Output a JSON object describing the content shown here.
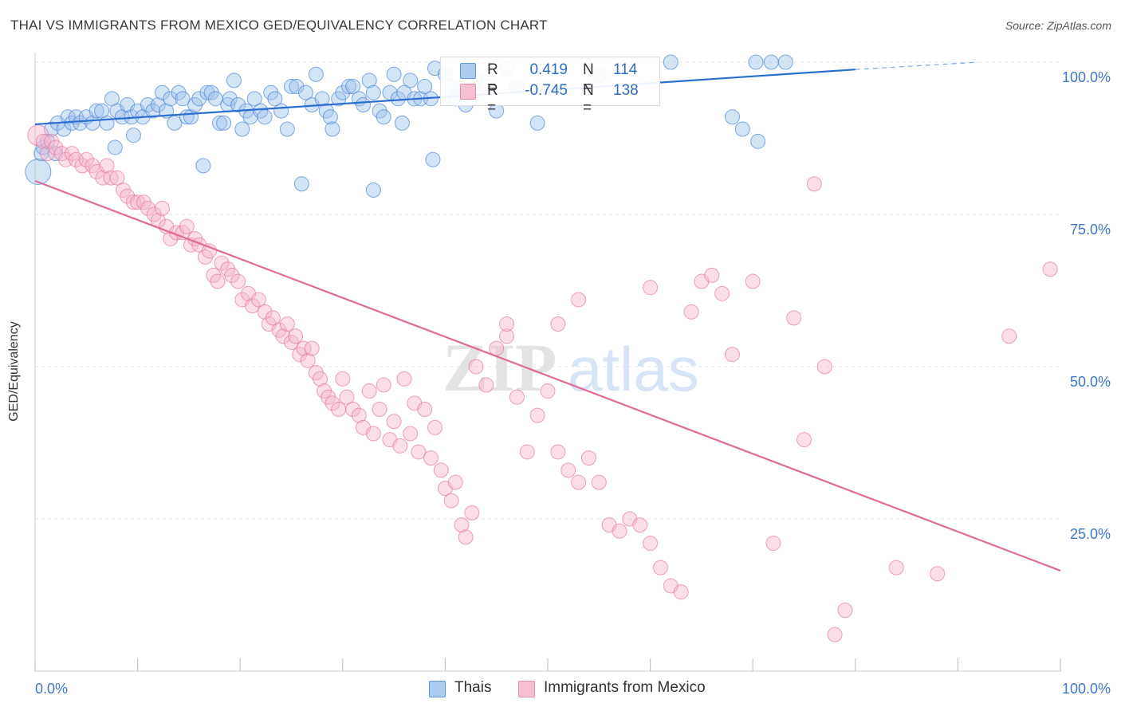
{
  "header": {
    "title": "THAI VS IMMIGRANTS FROM MEXICO GED/EQUIVALENCY CORRELATION CHART",
    "source": "Source: ZipAtlas.com"
  },
  "watermark": {
    "part1": "ZIP",
    "part2": "atlas"
  },
  "legend": {
    "r_label": "R =",
    "n_label": "N =",
    "series": [
      {
        "name": "Thais",
        "r": "0.419",
        "n": "114",
        "color": "#9ec3ee",
        "stroke": "#4a86d4",
        "line": "#2b6fce",
        "text": "#2d6bc4"
      },
      {
        "name": "Immigrants from Mexico",
        "r": "-0.745",
        "n": "138",
        "color": "#f6b6cb",
        "stroke": "#e5799e",
        "line": "#e06b97",
        "text": "#2d6bc4"
      }
    ]
  },
  "chart_data": {
    "type": "scatter",
    "title": "THAI VS IMMIGRANTS FROM MEXICO GED/EQUIVALENCY CORRELATION CHART",
    "xlabel": "",
    "ylabel": "GED/Equivalency",
    "xlim": [
      0,
      100
    ],
    "ylim": [
      0,
      100
    ],
    "x_tick_labels": [
      "0.0%",
      "100.0%"
    ],
    "y_tick_labels": [
      "100.0%",
      "75.0%",
      "50.0%",
      "25.0%"
    ],
    "y_ticks": [
      100,
      75,
      50,
      25
    ],
    "grid": "horizontal dashed",
    "legend_position": "top-center",
    "series": [
      {
        "name": "Thais",
        "trend": {
          "x": [
            0,
            80
          ],
          "y": [
            89.8,
            98.8
          ],
          "dashed_to_x": 92,
          "dashed_to_y": 100
        },
        "points": [
          [
            0.3,
            82
          ],
          [
            0.6,
            85
          ],
          [
            0.8,
            86
          ],
          [
            1.2,
            87
          ],
          [
            1.6,
            89
          ],
          [
            2,
            85
          ],
          [
            2.2,
            90
          ],
          [
            2.8,
            89
          ],
          [
            3.2,
            91
          ],
          [
            3.6,
            90
          ],
          [
            4,
            91
          ],
          [
            4.4,
            90
          ],
          [
            5,
            91
          ],
          [
            5.6,
            90
          ],
          [
            6,
            92
          ],
          [
            6.5,
            92
          ],
          [
            7,
            90
          ],
          [
            7.5,
            94
          ],
          [
            7.8,
            86
          ],
          [
            8,
            92
          ],
          [
            8.5,
            91
          ],
          [
            9,
            93
          ],
          [
            9.4,
            91
          ],
          [
            9.6,
            88
          ],
          [
            10,
            92
          ],
          [
            10.5,
            91
          ],
          [
            11,
            93
          ],
          [
            11.5,
            92
          ],
          [
            12,
            93
          ],
          [
            12.4,
            95
          ],
          [
            12.8,
            92
          ],
          [
            13.2,
            94
          ],
          [
            13.6,
            90
          ],
          [
            14,
            95
          ],
          [
            14.4,
            94
          ],
          [
            14.8,
            91
          ],
          [
            15.2,
            91
          ],
          [
            15.6,
            93
          ],
          [
            16,
            94
          ],
          [
            16.4,
            83
          ],
          [
            16.8,
            95
          ],
          [
            17.2,
            95
          ],
          [
            17.6,
            94
          ],
          [
            18,
            90
          ],
          [
            18.4,
            90
          ],
          [
            18.8,
            93
          ],
          [
            19,
            94
          ],
          [
            19.4,
            97
          ],
          [
            19.8,
            93
          ],
          [
            20.2,
            89
          ],
          [
            20.6,
            92
          ],
          [
            21,
            91
          ],
          [
            21.4,
            94
          ],
          [
            22,
            92
          ],
          [
            22.4,
            91
          ],
          [
            23,
            95
          ],
          [
            23.4,
            94
          ],
          [
            24,
            92
          ],
          [
            24.6,
            89
          ],
          [
            25,
            96
          ],
          [
            25.5,
            96
          ],
          [
            26,
            80
          ],
          [
            26.4,
            95
          ],
          [
            27,
            93
          ],
          [
            27.4,
            98
          ],
          [
            28,
            94
          ],
          [
            28.4,
            92
          ],
          [
            28.8,
            91
          ],
          [
            29,
            89
          ],
          [
            29.6,
            94
          ],
          [
            30,
            95
          ],
          [
            30.6,
            96
          ],
          [
            31,
            96
          ],
          [
            31.6,
            94
          ],
          [
            32,
            93
          ],
          [
            32.6,
            97
          ],
          [
            33,
            95
          ],
          [
            33.6,
            92
          ],
          [
            34,
            91
          ],
          [
            34.6,
            95
          ],
          [
            35,
            98
          ],
          [
            35.4,
            94
          ],
          [
            35.8,
            90
          ],
          [
            36,
            95
          ],
          [
            36.6,
            97
          ],
          [
            37,
            94
          ],
          [
            37.6,
            94
          ],
          [
            38,
            96
          ],
          [
            38.6,
            94
          ],
          [
            38.8,
            84
          ],
          [
            39,
            99
          ],
          [
            40,
            98
          ],
          [
            40.6,
            96
          ],
          [
            41,
            94
          ],
          [
            41.4,
            95
          ],
          [
            42,
            93
          ],
          [
            43,
            97
          ],
          [
            44,
            96
          ],
          [
            45,
            92
          ],
          [
            46,
            99
          ],
          [
            47,
            96
          ],
          [
            49,
            90
          ],
          [
            50,
            96
          ],
          [
            55,
            98
          ],
          [
            62,
            100
          ],
          [
            68,
            91
          ],
          [
            69,
            89
          ],
          [
            70.3,
            100
          ],
          [
            71.8,
            100
          ],
          [
            73.2,
            100
          ],
          [
            70.5,
            87
          ],
          [
            33,
            79
          ]
        ]
      },
      {
        "name": "Immigrants from Mexico",
        "trend": {
          "x": [
            0,
            100
          ],
          "y": [
            80.5,
            16.5
          ]
        },
        "points": [
          [
            0.3,
            88
          ],
          [
            0.8,
            87
          ],
          [
            1.2,
            85
          ],
          [
            1.6,
            87
          ],
          [
            2,
            86
          ],
          [
            2.6,
            85
          ],
          [
            3,
            84
          ],
          [
            3.6,
            85
          ],
          [
            4,
            84
          ],
          [
            4.6,
            83
          ],
          [
            5,
            84
          ],
          [
            5.6,
            83
          ],
          [
            6,
            82
          ],
          [
            6.6,
            81
          ],
          [
            7,
            83
          ],
          [
            7.4,
            81
          ],
          [
            8,
            81
          ],
          [
            8.6,
            79
          ],
          [
            9,
            78
          ],
          [
            9.6,
            77
          ],
          [
            10,
            77
          ],
          [
            10.6,
            77
          ],
          [
            11,
            76
          ],
          [
            11.6,
            75
          ],
          [
            12,
            74
          ],
          [
            12.4,
            76
          ],
          [
            12.8,
            73
          ],
          [
            13.2,
            71
          ],
          [
            13.8,
            72
          ],
          [
            14.4,
            72
          ],
          [
            14.8,
            73
          ],
          [
            15.2,
            70
          ],
          [
            15.6,
            71
          ],
          [
            16,
            70
          ],
          [
            16.6,
            68
          ],
          [
            17,
            69
          ],
          [
            17.4,
            65
          ],
          [
            17.8,
            64
          ],
          [
            18.2,
            67
          ],
          [
            18.8,
            66
          ],
          [
            19.2,
            65
          ],
          [
            19.8,
            64
          ],
          [
            20.2,
            61
          ],
          [
            20.8,
            62
          ],
          [
            21.2,
            60
          ],
          [
            21.8,
            61
          ],
          [
            22.4,
            59
          ],
          [
            22.8,
            57
          ],
          [
            23.2,
            58
          ],
          [
            23.8,
            56
          ],
          [
            24.2,
            55
          ],
          [
            24.6,
            57
          ],
          [
            25,
            54
          ],
          [
            25.4,
            55
          ],
          [
            25.8,
            52
          ],
          [
            26.2,
            53
          ],
          [
            26.6,
            51
          ],
          [
            27,
            53
          ],
          [
            27.4,
            49
          ],
          [
            27.8,
            48
          ],
          [
            28.2,
            46
          ],
          [
            28.6,
            45
          ],
          [
            29,
            44
          ],
          [
            29.6,
            43
          ],
          [
            30,
            48
          ],
          [
            30.4,
            45
          ],
          [
            31,
            43
          ],
          [
            31.6,
            42
          ],
          [
            32,
            40
          ],
          [
            32.6,
            46
          ],
          [
            33,
            39
          ],
          [
            33.6,
            43
          ],
          [
            34,
            47
          ],
          [
            34.6,
            38
          ],
          [
            35,
            41
          ],
          [
            35.6,
            37
          ],
          [
            36,
            48
          ],
          [
            36.6,
            39
          ],
          [
            37,
            44
          ],
          [
            37.4,
            36
          ],
          [
            38,
            43
          ],
          [
            38.6,
            35
          ],
          [
            39,
            40
          ],
          [
            39.6,
            33
          ],
          [
            40,
            30
          ],
          [
            40.6,
            28
          ],
          [
            41,
            31
          ],
          [
            41.6,
            24
          ],
          [
            42,
            22
          ],
          [
            42.6,
            26
          ],
          [
            43,
            50
          ],
          [
            44,
            47
          ],
          [
            45,
            53
          ],
          [
            46,
            55
          ],
          [
            47,
            45
          ],
          [
            48,
            36
          ],
          [
            49,
            42
          ],
          [
            50,
            46
          ],
          [
            51,
            36
          ],
          [
            52,
            33
          ],
          [
            53,
            31
          ],
          [
            54,
            35
          ],
          [
            55,
            31
          ],
          [
            56,
            24
          ],
          [
            57,
            23
          ],
          [
            58,
            25
          ],
          [
            59,
            24
          ],
          [
            60,
            21
          ],
          [
            61,
            17
          ],
          [
            62,
            14
          ],
          [
            63,
            13
          ],
          [
            64,
            59
          ],
          [
            65,
            64
          ],
          [
            66,
            65
          ],
          [
            67,
            62
          ],
          [
            68,
            52
          ],
          [
            70,
            64
          ],
          [
            72,
            21
          ],
          [
            74,
            58
          ],
          [
            75,
            38
          ],
          [
            76,
            80
          ],
          [
            77,
            50
          ],
          [
            78,
            6
          ],
          [
            79,
            10
          ],
          [
            84,
            17
          ],
          [
            88,
            16
          ],
          [
            95,
            55
          ],
          [
            99,
            66
          ],
          [
            46,
            57
          ],
          [
            51,
            57
          ],
          [
            53,
            61
          ],
          [
            60,
            63
          ]
        ]
      }
    ]
  }
}
